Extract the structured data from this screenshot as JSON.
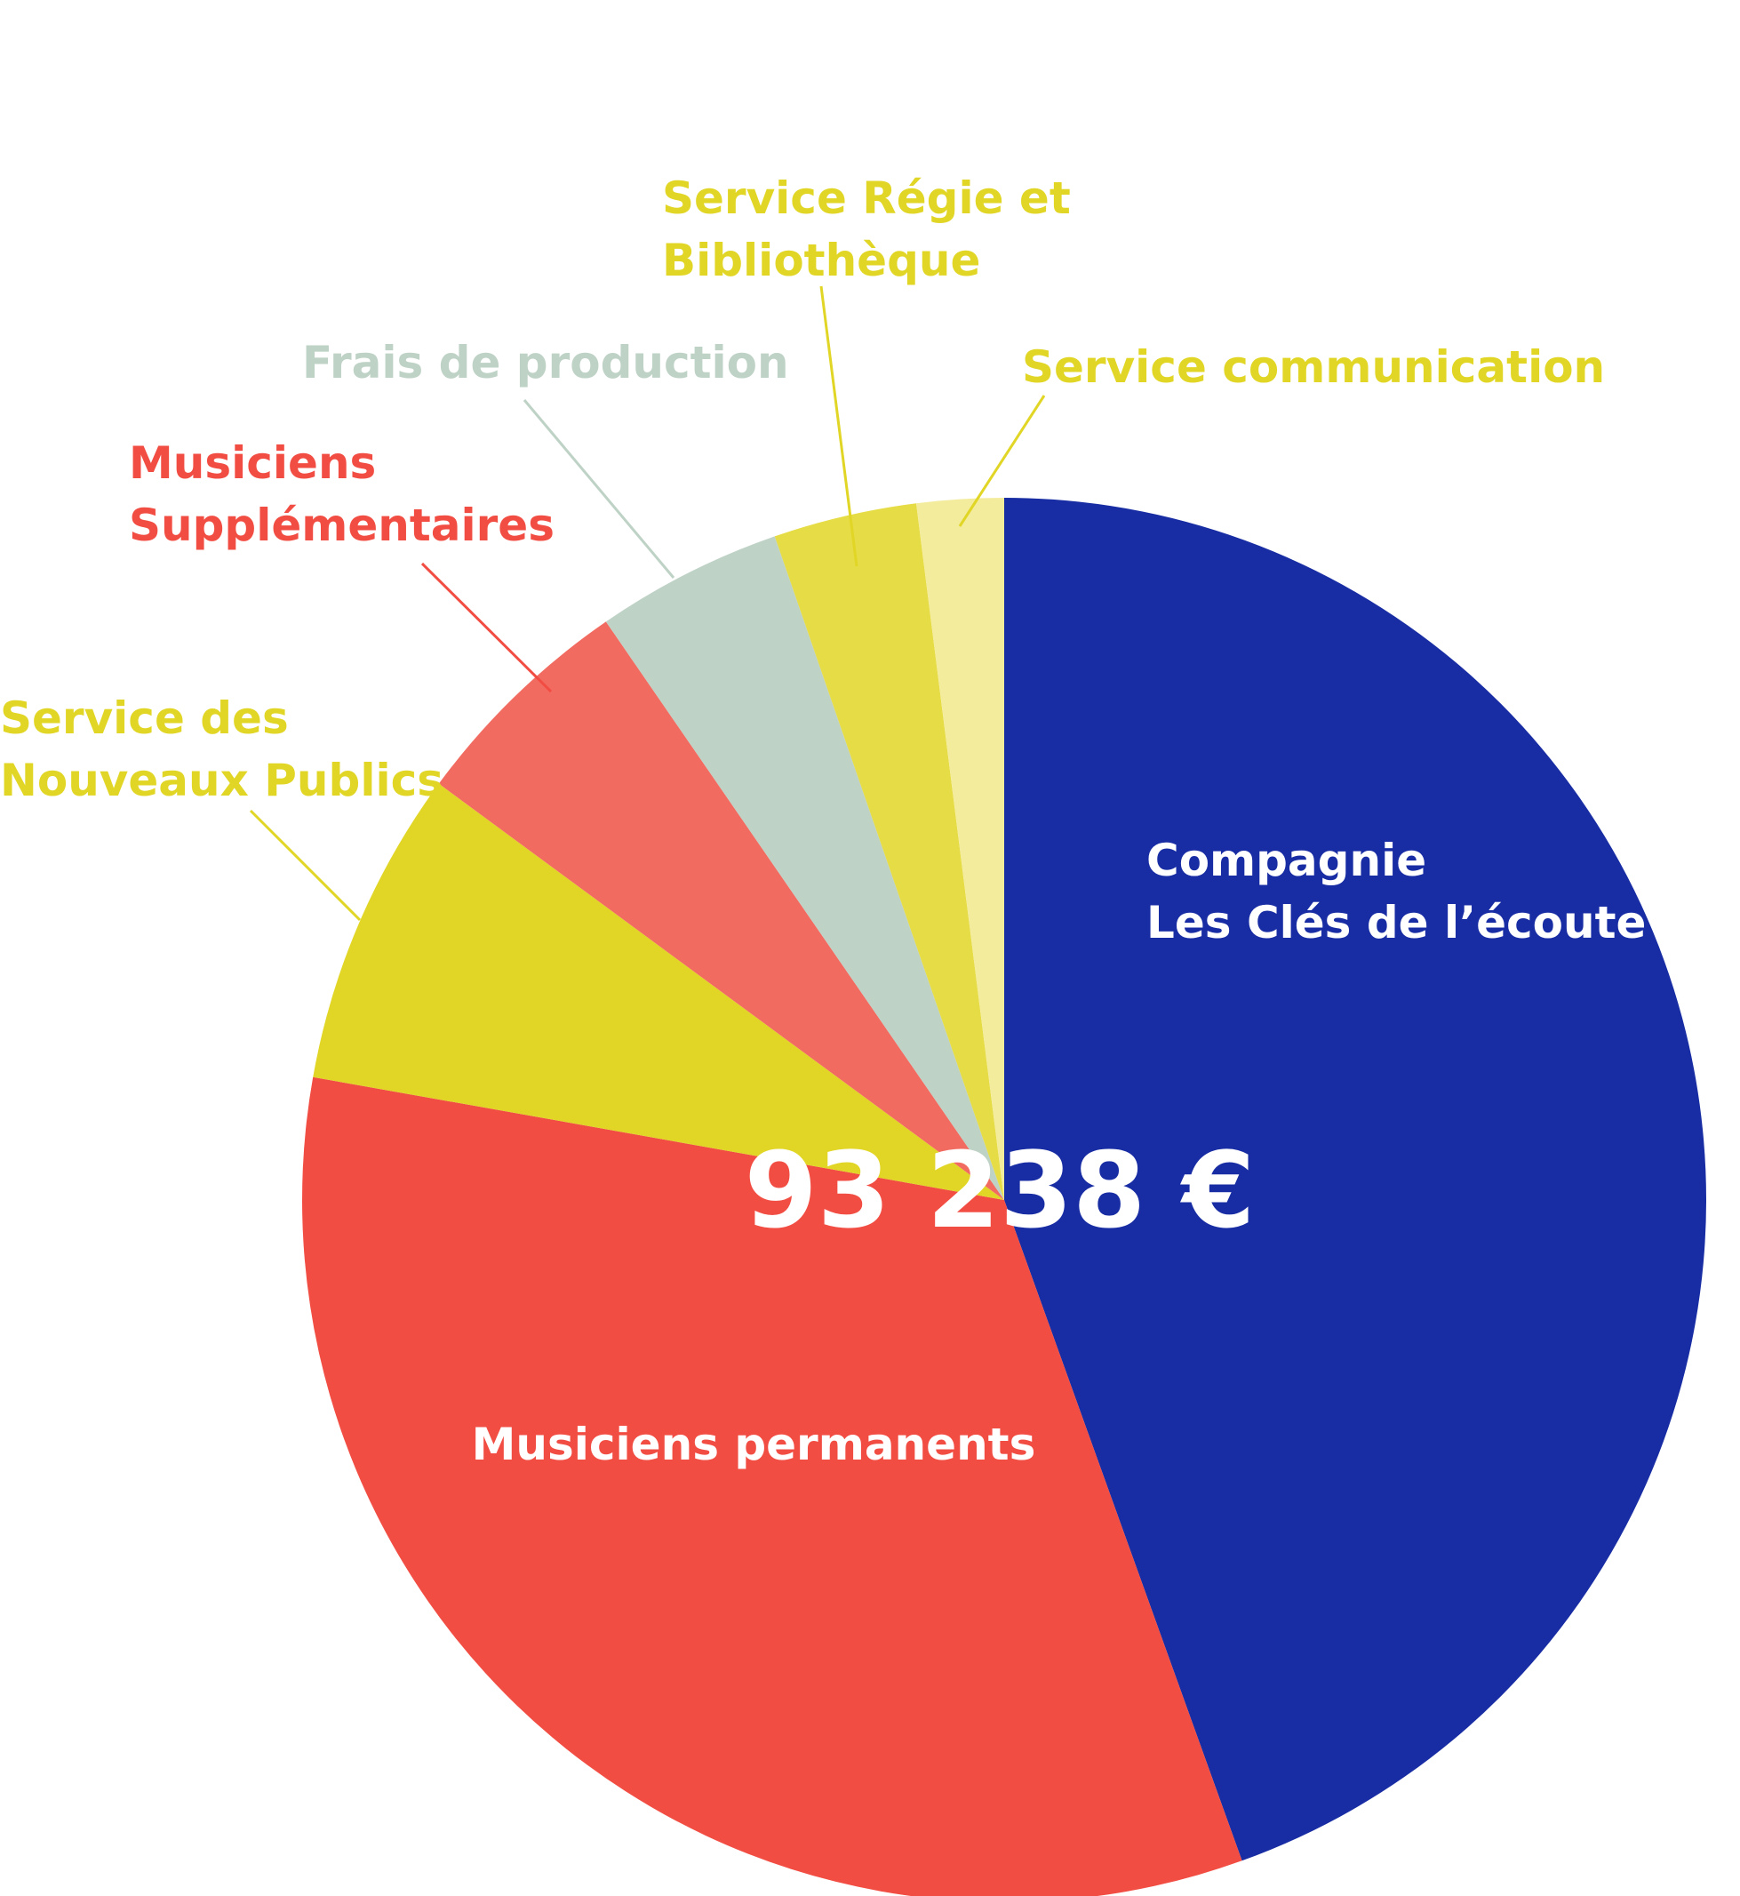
{
  "chart_data": {
    "type": "pie",
    "total_label": "93 238 €",
    "slices": [
      {
        "name": "Compagnie Les Clés de l’écoute",
        "label_lines": [
          "Compagnie",
          "Les Clés de l’écoute"
        ],
        "value": 44.5,
        "color": "#182da3",
        "label_color": "#ffffff"
      },
      {
        "name": "Musiciens permanents",
        "label_lines": [
          "Musiciens permanents"
        ],
        "value": 33.3,
        "color": "#f24d43",
        "label_color": "#ffffff"
      },
      {
        "name": "Service des Nouveaux Publics",
        "label_lines": [
          "Service des",
          "Nouveaux Publics"
        ],
        "value": 7.3,
        "color": "#e1d626",
        "label_color": "#e1d626"
      },
      {
        "name": "Musiciens Supplémentaires",
        "label_lines": [
          "Musiciens",
          "Supplémentaires"
        ],
        "value": 5.3,
        "color": "#f26b61",
        "label_color": "#f24d43"
      },
      {
        "name": "Frais de production",
        "label_lines": [
          "Frais de production"
        ],
        "value": 4.3,
        "color": "#bed2c6",
        "label_color": "#bed2c6"
      },
      {
        "name": "Service Régie et Bibliothèque",
        "label_lines": [
          "Service Régie et",
          "Bibliothèque"
        ],
        "value": 3.3,
        "color": "#e6dc45",
        "label_color": "#e1d626"
      },
      {
        "name": "Service communication",
        "label_lines": [
          "Service communication"
        ],
        "value": 2.0,
        "color": "#f3ec9c",
        "label_color": "#e1d626"
      }
    ]
  }
}
